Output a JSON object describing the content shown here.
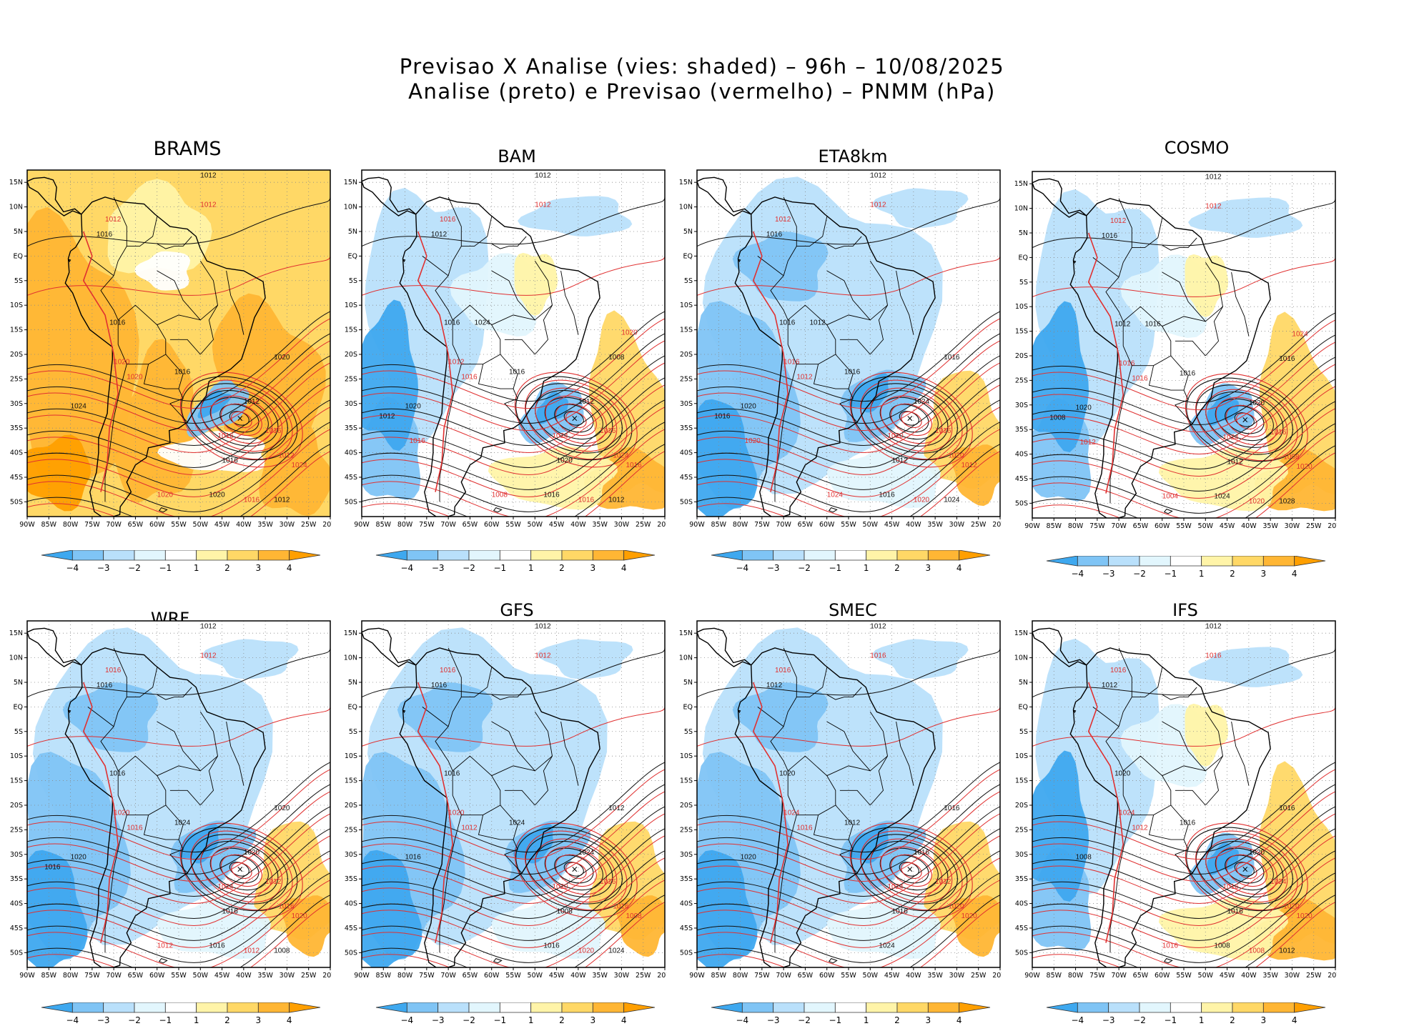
{
  "title": {
    "line1": "Previsao X Analise (vies: shaded) – 96h – 10/08/2025",
    "line2": "Analise (preto) e Previsao (vermelho) – PNMM (hPa)"
  },
  "lat_labels": [
    "15N",
    "10N",
    "5N",
    "EQ",
    "5S",
    "10S",
    "15S",
    "20S",
    "25S",
    "30S",
    "35S",
    "40S",
    "45S",
    "50S"
  ],
  "lon_labels": [
    "90W",
    "85W",
    "80W",
    "75W",
    "70W",
    "65W",
    "60W",
    "55W",
    "50W",
    "45W",
    "40W",
    "35W",
    "30W",
    "25W",
    "20W"
  ],
  "colorbar": {
    "labels": [
      "−4",
      "−3",
      "−2",
      "−1",
      "1",
      "2",
      "3",
      "4"
    ],
    "colors": [
      "#3ea8ef",
      "#7fc4f5",
      "#b9e0fb",
      "#e2f6fd",
      "#ffffff",
      "#fff4a8",
      "#ffd866",
      "#ffb634",
      "#ff9f00"
    ]
  },
  "panels": [
    {
      "model": "BRAMS",
      "bias": "warm",
      "isobars": [
        "1012",
        "1012",
        "1016",
        "1012",
        "1016",
        "1020",
        "1016",
        "1020",
        "1024",
        "1016",
        "1012",
        "1016",
        "1016",
        "1012",
        "1020",
        "1024",
        "1020",
        "1016",
        "1012",
        "1020"
      ]
    },
    {
      "model": "BAM",
      "bias": "mixed",
      "isobars": [
        "1012",
        "1016",
        "1012",
        "1012",
        "1016",
        "1012",
        "1016",
        "1016",
        "1020",
        "1024",
        "1012",
        "1016",
        "1020",
        "1024",
        "1008",
        "1016",
        "1016",
        "1016",
        "1012",
        "1008",
        "1012",
        "1016",
        "1024",
        "1020"
      ]
    },
    {
      "model": "ETA8km",
      "bias": "cold",
      "isobars": [
        "1012",
        "1012",
        "1016",
        "1012",
        "1016",
        "1016",
        "1016",
        "1012",
        "1020",
        "1020",
        "1024",
        "1016",
        "1012",
        "1020",
        "1016",
        "1012",
        "1016",
        "1020",
        "1024",
        "1024",
        "1016",
        "1020",
        "1012"
      ]
    },
    {
      "model": "COSMO",
      "bias": "mixed",
      "isobars": [
        "1012",
        "1012",
        "1016",
        "1012",
        "1012",
        "1016",
        "1016",
        "1016",
        "1020",
        "1024",
        "1020",
        "1016",
        "1012",
        "1008",
        "1016",
        "1020",
        "1024",
        "1020",
        "1028",
        "1004",
        "1008",
        "1012",
        "1016",
        "1024"
      ]
    },
    {
      "model": "WRF",
      "bias": "cold",
      "isobars": [
        "1012",
        "1016",
        "1016",
        "1012",
        "1016",
        "1020",
        "1024",
        "1016",
        "1020",
        "1024",
        "1020",
        "1012",
        "1016",
        "1016",
        "1020",
        "1020",
        "1016",
        "1012",
        "1008",
        "1012",
        "1016"
      ]
    },
    {
      "model": "GFS",
      "bias": "cold",
      "isobars": [
        "1012",
        "1016",
        "1016",
        "1012",
        "1016",
        "1020",
        "1024",
        "1012",
        "1016",
        "1020",
        "1024",
        "1016",
        "1008",
        "1016",
        "1012",
        "1008",
        "1016",
        "1020",
        "1024"
      ]
    },
    {
      "model": "SMEC",
      "bias": "cold",
      "isobars": [
        "1012",
        "1016",
        "1012",
        "1016",
        "1020",
        "1024",
        "1012",
        "1016",
        "1020",
        "1024",
        "1016",
        "1012",
        "1016",
        "1020",
        "1016",
        "1020",
        "1024"
      ]
    },
    {
      "model": "IFS",
      "bias": "mixed",
      "isobars": [
        "1012",
        "1016",
        "1012",
        "1016",
        "1020",
        "1024",
        "1016",
        "1012",
        "1008",
        "1016",
        "1020",
        "1024",
        "1016",
        "1020",
        "1016",
        "1020",
        "1008",
        "1008",
        "1012",
        "1016"
      ]
    }
  ]
}
